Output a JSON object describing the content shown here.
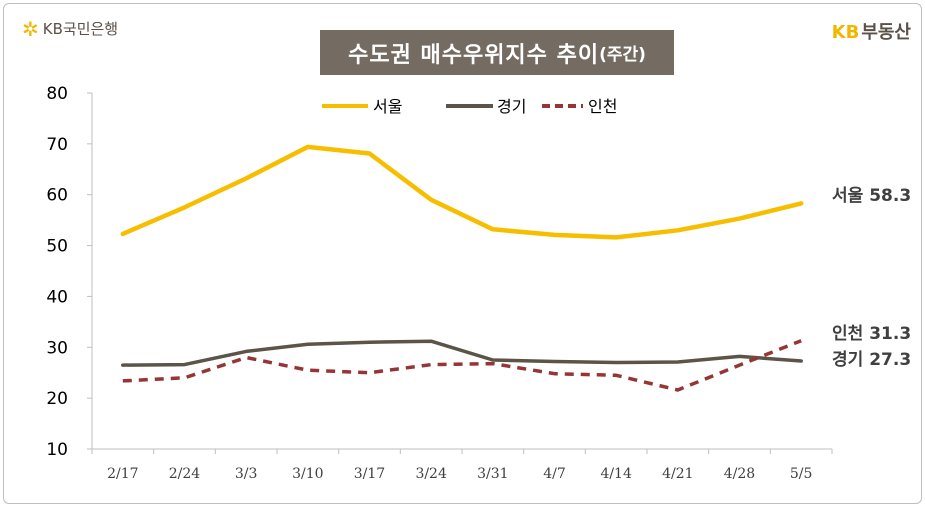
{
  "header": {
    "brand_left_icon": "kb-star-icon",
    "brand_left": "KB국민은행",
    "brand_right_kb": "KB",
    "brand_right_rest": "부동산"
  },
  "colors": {
    "seoul": "#f7be00",
    "gyeonggi": "#5b5447",
    "incheon": "#963634",
    "title_bg": "#746c63",
    "accent": "#f2b600"
  },
  "chart_data": {
    "type": "line",
    "title": "수도권 매수우위지수 추이",
    "title_suffix": "(주간)",
    "categories": [
      "2/17",
      "2/24",
      "3/3",
      "3/10",
      "3/17",
      "3/24",
      "3/31",
      "4/7",
      "4/14",
      "4/21",
      "4/28",
      "5/5"
    ],
    "series": [
      {
        "name": "서울",
        "style": "solid",
        "values": [
          52.3,
          57.5,
          63.2,
          69.4,
          68.1,
          59.0,
          53.2,
          52.1,
          51.6,
          53.0,
          55.3,
          58.3
        ]
      },
      {
        "name": "경기",
        "style": "solid",
        "values": [
          26.5,
          26.6,
          29.2,
          30.6,
          31.0,
          31.2,
          27.5,
          27.2,
          27.0,
          27.1,
          28.2,
          27.3
        ]
      },
      {
        "name": "인천",
        "style": "dashed",
        "values": [
          23.4,
          24.0,
          28.0,
          25.5,
          25.0,
          26.6,
          26.8,
          24.8,
          24.5,
          21.6,
          26.5,
          31.3
        ]
      }
    ],
    "end_labels": [
      {
        "series": "서울",
        "text": "서울 58.3"
      },
      {
        "series": "인천",
        "text": "인천 31.3"
      },
      {
        "series": "경기",
        "text": "경기 27.3"
      }
    ],
    "ylim": [
      10,
      80
    ],
    "yticks": [
      10,
      20,
      30,
      40,
      50,
      60,
      70,
      80
    ],
    "grid": false,
    "legend_position": "top-center"
  }
}
